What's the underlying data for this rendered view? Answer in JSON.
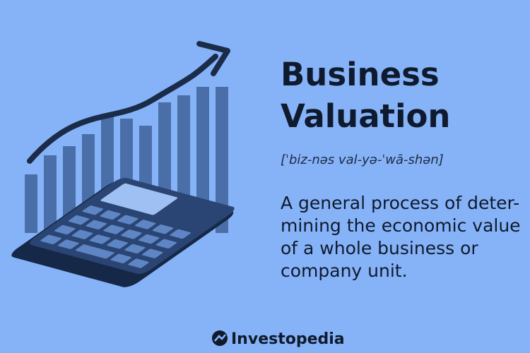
{
  "header": {
    "title_lines": [
      "Business",
      "Valuation"
    ],
    "pronunciation": "[ˈbiz-nəs val-yə-ˈwā-shən]"
  },
  "definition_lines": [
    "A general process of deter-",
    "mining the economic value",
    "of a whole business or",
    "company unit."
  ],
  "footer": {
    "brand": "Investopedia"
  }
}
